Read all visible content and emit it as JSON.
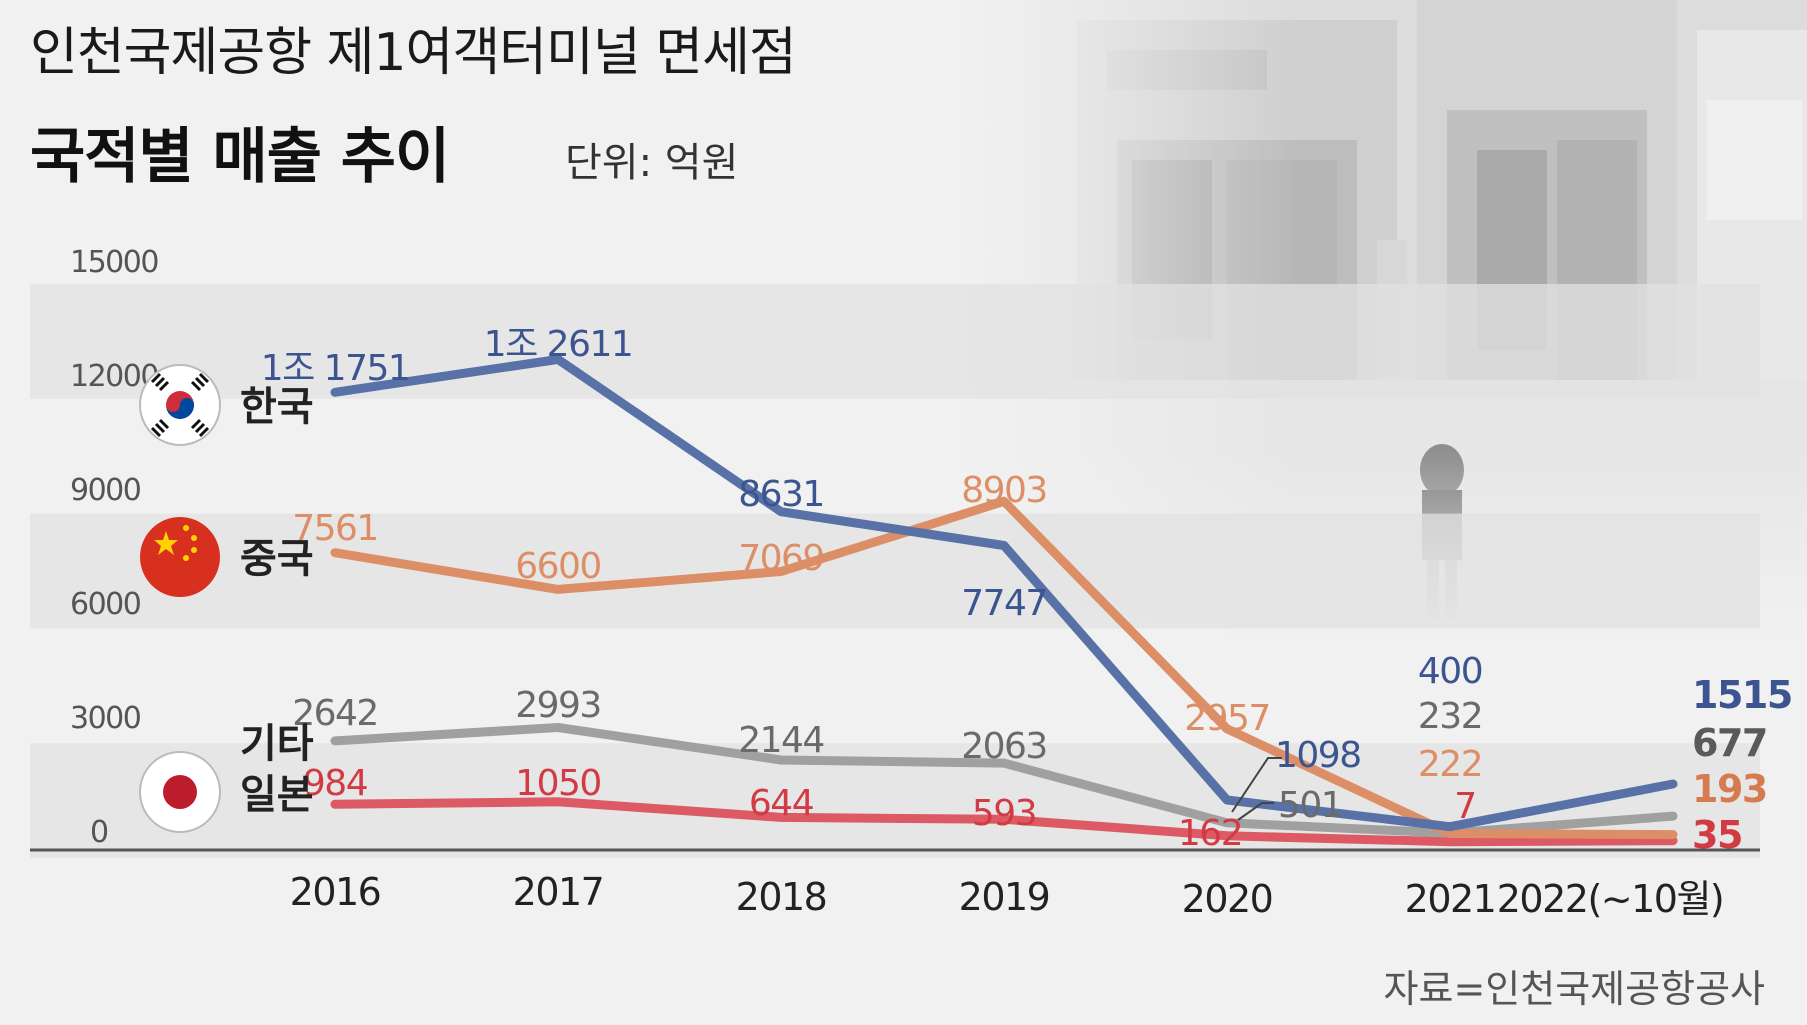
{
  "header": {
    "title_line1": "인천국제공항 제1여객터미널 면세점",
    "title_line2": "국적별 매출 추이",
    "unit": "단위: 억원"
  },
  "source": "자료=인천국제공항공사",
  "legend": {
    "korea": "한국",
    "china": "중국",
    "other": "기타",
    "japan": "일본"
  },
  "colors": {
    "korea": "#5872a8",
    "china": "#dc8f66",
    "other": "#a0a0a0",
    "japan": "#dc5a64",
    "korea_label": "#3c5590",
    "china_label": "#d67b4f",
    "other_label": "#5a5a5a",
    "japan_label": "#d23a44"
  },
  "chart_data": {
    "type": "line",
    "title": "인천국제공항 제1여객터미널 면세점 국적별 매출 추이",
    "ylabel": "단위: 억원",
    "ylim": [
      0,
      15000
    ],
    "yticks": [
      "15000",
      "12000",
      "9000",
      "6000",
      "3000",
      "0"
    ],
    "categories": [
      "2016",
      "2017",
      "2018",
      "2019",
      "2020",
      "2021",
      "2022(~10월)"
    ],
    "series": [
      {
        "key": "korea",
        "name": "한국",
        "values": [
          11751,
          12611,
          8631,
          7747,
          1098,
          400,
          1515
        ],
        "labels": [
          "1조 1751",
          "1조 2611",
          "8631",
          "7747",
          "1098",
          "400",
          "1515"
        ]
      },
      {
        "key": "china",
        "name": "중국",
        "values": [
          7561,
          6600,
          7069,
          8903,
          2957,
          222,
          193
        ],
        "labels": [
          "7561",
          "6600",
          "7069",
          "8903",
          "2957",
          "222",
          "193"
        ]
      },
      {
        "key": "other",
        "name": "기타",
        "values": [
          2642,
          2993,
          2144,
          2063,
          501,
          232,
          677
        ],
        "labels": [
          "2642",
          "2993",
          "2144",
          "2063",
          "501",
          "232",
          "677"
        ]
      },
      {
        "key": "japan",
        "name": "일본",
        "values": [
          984,
          1050,
          644,
          593,
          162,
          7,
          35
        ],
        "labels": [
          "984",
          "1050",
          "644",
          "593",
          "162",
          "7",
          "35"
        ]
      }
    ]
  }
}
